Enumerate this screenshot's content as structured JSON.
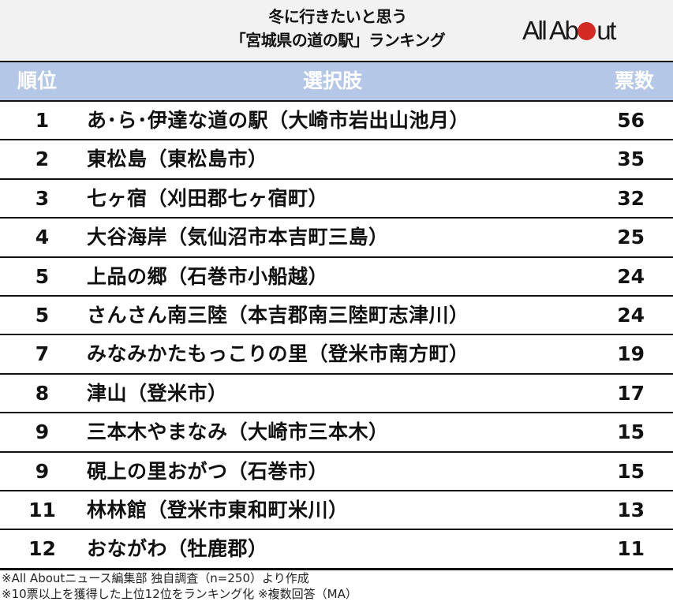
{
  "header": {
    "title_line1": "冬に行きたいと思う",
    "title_line2": "「宮城県の道の駅」ランキング",
    "logo": {
      "text_before": "All Ab",
      "text_after": "ut",
      "dot_color": "#d42a24"
    }
  },
  "table": {
    "columns": {
      "rank": "順位",
      "name": "選択肢",
      "votes": "票数"
    },
    "header_bg": "#b4c7e7",
    "rows": [
      {
        "rank": "1",
        "name": "あ･ら･伊達な道の駅（大崎市岩出山池月）",
        "votes": "56"
      },
      {
        "rank": "2",
        "name": "東松島（東松島市）",
        "votes": "35"
      },
      {
        "rank": "3",
        "name": "七ヶ宿（刈田郡七ヶ宿町）",
        "votes": "32"
      },
      {
        "rank": "4",
        "name": "大谷海岸（気仙沼市本吉町三島）",
        "votes": "25"
      },
      {
        "rank": "5",
        "name": "上品の郷（石巻市小船越）",
        "votes": "24"
      },
      {
        "rank": "5",
        "name": "さんさん南三陸（本吉郡南三陸町志津川）",
        "votes": "24"
      },
      {
        "rank": "7",
        "name": "みなみかたもっこりの里（登米市南方町）",
        "votes": "19"
      },
      {
        "rank": "8",
        "name": "津山（登米市）",
        "votes": "17"
      },
      {
        "rank": "9",
        "name": "三本木やまなみ（大崎市三本木）",
        "votes": "15"
      },
      {
        "rank": "9",
        "name": "硯上の里おがつ（石巻市）",
        "votes": "15"
      },
      {
        "rank": "11",
        "name": "林林館（登米市東和町米川）",
        "votes": "13"
      },
      {
        "rank": "12",
        "name": "おながわ（牡鹿郡）",
        "votes": "11"
      }
    ]
  },
  "footer": {
    "line1": "※All Aboutニュース編集部 独自調査（n=250）より作成",
    "line2": "※10票以上を獲得した上位12位をランキング化 ※複数回答（MA）"
  },
  "chart_data": {
    "type": "table",
    "title": "冬に行きたいと思う「宮城県の道の駅」ランキング",
    "columns": [
      "順位",
      "選択肢",
      "票数"
    ],
    "categories": [
      "あ･ら･伊達な道の駅（大崎市岩出山池月）",
      "東松島（東松島市）",
      "七ヶ宿（刈田郡七ヶ宿町）",
      "大谷海岸（気仙沼市本吉町三島）",
      "上品の郷（石巻市小船越）",
      "さんさん南三陸（本吉郡南三陸町志津川）",
      "みなみかたもっこりの里（登米市南方町）",
      "津山（登米市）",
      "三本木やまなみ（大崎市三本木）",
      "硯上の里おがつ（石巻市）",
      "林林館（登米市東和町米川）",
      "おながわ（牡鹿郡）"
    ],
    "ranks": [
      1,
      2,
      3,
      4,
      5,
      5,
      7,
      8,
      9,
      9,
      11,
      12
    ],
    "values": [
      56,
      35,
      32,
      25,
      24,
      24,
      19,
      17,
      15,
      15,
      13,
      11
    ],
    "notes": [
      "※All Aboutニュース編集部 独自調査（n=250）より作成",
      "※10票以上を獲得した上位12位をランキング化 ※複数回答（MA）"
    ]
  }
}
